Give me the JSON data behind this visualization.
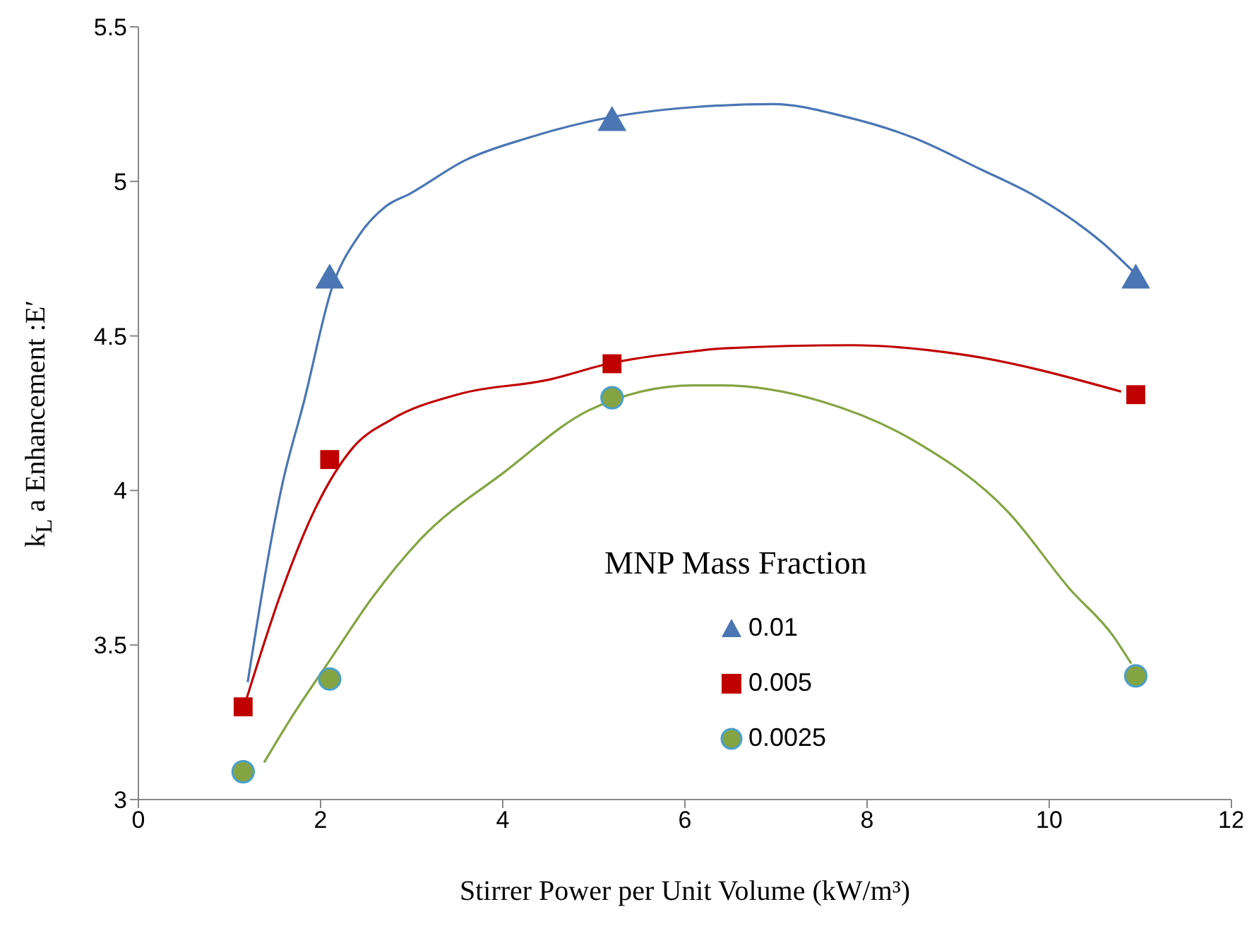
{
  "chart_data": {
    "type": "scatter",
    "xlabel": "Stirrer Power per Unit Volume (kW/m³)",
    "ylabel": "k$_{L}$ a Enhancement :E′",
    "legend_title": "MNP Mass Fraction",
    "x": [
      1.15,
      2.1,
      5.2,
      10.95
    ],
    "series": [
      {
        "name": "0.01",
        "marker": "triangle",
        "color": "#4a76b4",
        "values": [
          null,
          4.68,
          5.19,
          4.68
        ]
      },
      {
        "name": "0.005",
        "marker": "square",
        "color": "#c00000",
        "values": [
          3.3,
          4.1,
          4.41,
          4.31
        ]
      },
      {
        "name": "0.0025",
        "marker": "circle",
        "color": "#84a444",
        "values": [
          3.09,
          3.39,
          4.3,
          3.4
        ]
      },
      {
        "type": "line",
        "color": "#4a76b4",
        "x": [
          1.2,
          1.58,
          1.82,
          2.13,
          2.41,
          2.72,
          2.98,
          3.6,
          4.27,
          5.05,
          6.09,
          6.97,
          7.75,
          8.52,
          9.24,
          9.86,
          10.59,
          10.95
        ],
        "values": [
          3.38,
          4.02,
          4.29,
          4.66,
          4.82,
          4.92,
          4.96,
          5.07,
          5.14,
          5.2,
          5.24,
          5.25,
          5.21,
          5.14,
          5.04,
          4.95,
          4.8,
          4.7
        ]
      },
      {
        "type": "line",
        "color": "#c00000",
        "x": [
          1.16,
          1.58,
          1.94,
          2.36,
          2.78,
          3.5,
          4.53,
          5.16,
          6.09,
          6.44,
          7.84,
          9.04,
          10.79
        ],
        "values": [
          3.3,
          3.68,
          3.94,
          4.14,
          4.23,
          4.31,
          4.36,
          4.41,
          4.45,
          4.46,
          4.47,
          4.44,
          4.32
        ]
      },
      {
        "type": "line",
        "color": "#84a444",
        "x": [
          1.38,
          1.69,
          2.1,
          2.56,
          3.09,
          4.02,
          4.95,
          6.09,
          6.4,
          7.48,
          8.52,
          9.55,
          10.23,
          10.7,
          10.9
        ],
        "values": [
          3.12,
          3.27,
          3.45,
          3.65,
          3.84,
          4.06,
          4.26,
          4.34,
          4.34,
          4.29,
          4.16,
          3.93,
          3.68,
          3.53,
          3.44
        ]
      }
    ],
    "xlim": [
      0,
      12
    ],
    "xticks": [
      0,
      2,
      4,
      6,
      8,
      10,
      12
    ],
    "ylim": [
      3,
      5.5
    ],
    "yticks": [
      3,
      3.5,
      4,
      4.5,
      5,
      5.5
    ],
    "grid": false,
    "legend": "right",
    "line_style": "solid"
  }
}
